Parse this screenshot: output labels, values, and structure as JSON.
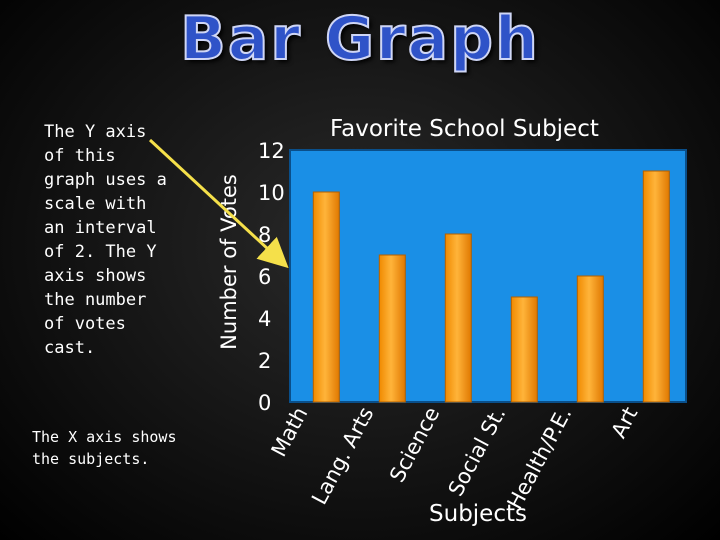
{
  "slide": {
    "title": "Bar Graph",
    "y_axis_note": "The Y axis of this graph uses a scale with an interval of 2. The Y axis shows the number of votes cast.",
    "x_axis_note": "The X axis shows the subjects."
  },
  "colors": {
    "plot_background": "#1a8fe6",
    "bar": "#ffa51c",
    "title": "#2f53c8",
    "arrow": "#f5e04a"
  },
  "chart_data": {
    "type": "bar",
    "title": "Favorite School Subject",
    "xlabel": "Subjects",
    "ylabel": "Number of Votes",
    "categories": [
      "Math",
      "Lang. Arts",
      "Science",
      "Social St.",
      "Health/P.E.",
      "Art"
    ],
    "values": [
      10,
      7,
      8,
      5,
      6,
      11
    ],
    "ylim": [
      0,
      12
    ],
    "yticks": [
      0,
      2,
      4,
      6,
      8,
      10,
      12
    ],
    "grid": false,
    "legend": "none"
  }
}
